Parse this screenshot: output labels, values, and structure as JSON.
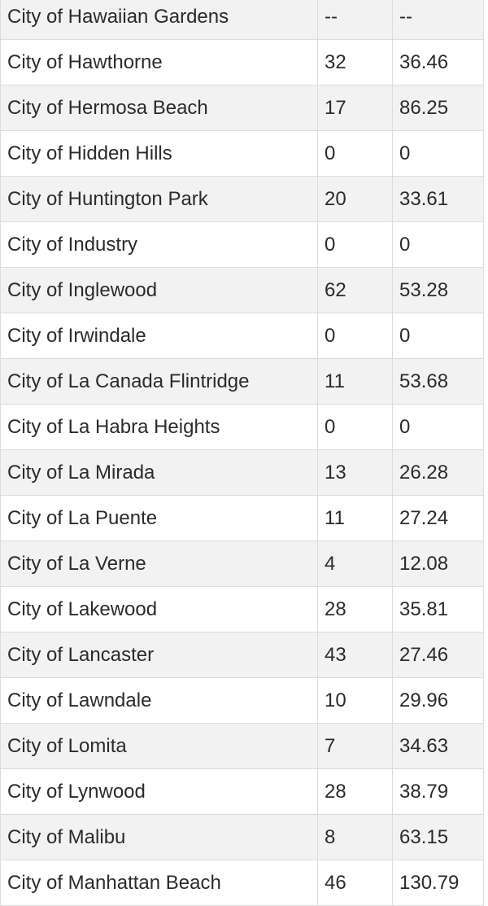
{
  "table": {
    "rows": [
      {
        "name": "City of Hawaiian Gardens",
        "count": "--",
        "rate": "--"
      },
      {
        "name": "City of Hawthorne",
        "count": "32",
        "rate": "36.46"
      },
      {
        "name": "City of Hermosa Beach",
        "count": "17",
        "rate": "86.25"
      },
      {
        "name": "City of Hidden Hills",
        "count": "0",
        "rate": "0"
      },
      {
        "name": "City of Huntington Park",
        "count": "20",
        "rate": "33.61"
      },
      {
        "name": "City of Industry",
        "count": "0",
        "rate": "0"
      },
      {
        "name": "City of Inglewood",
        "count": "62",
        "rate": "53.28"
      },
      {
        "name": "City of Irwindale",
        "count": "0",
        "rate": "0"
      },
      {
        "name": "City of La Canada Flintridge",
        "count": "11",
        "rate": "53.68"
      },
      {
        "name": "City of La Habra Heights",
        "count": "0",
        "rate": "0"
      },
      {
        "name": "City of La Mirada",
        "count": "13",
        "rate": "26.28"
      },
      {
        "name": "City of La Puente",
        "count": "11",
        "rate": "27.24"
      },
      {
        "name": "City of La Verne",
        "count": "4",
        "rate": "12.08"
      },
      {
        "name": "City of Lakewood",
        "count": "28",
        "rate": "35.81"
      },
      {
        "name": "City of Lancaster",
        "count": "43",
        "rate": "27.46"
      },
      {
        "name": "City of Lawndale",
        "count": "10",
        "rate": "29.96"
      },
      {
        "name": "City of Lomita",
        "count": "7",
        "rate": "34.63"
      },
      {
        "name": "City of Lynwood",
        "count": "28",
        "rate": "38.79"
      },
      {
        "name": "City of Malibu",
        "count": "8",
        "rate": "63.15"
      },
      {
        "name": "City of Manhattan Beach",
        "count": "46",
        "rate": "130.79"
      }
    ]
  }
}
